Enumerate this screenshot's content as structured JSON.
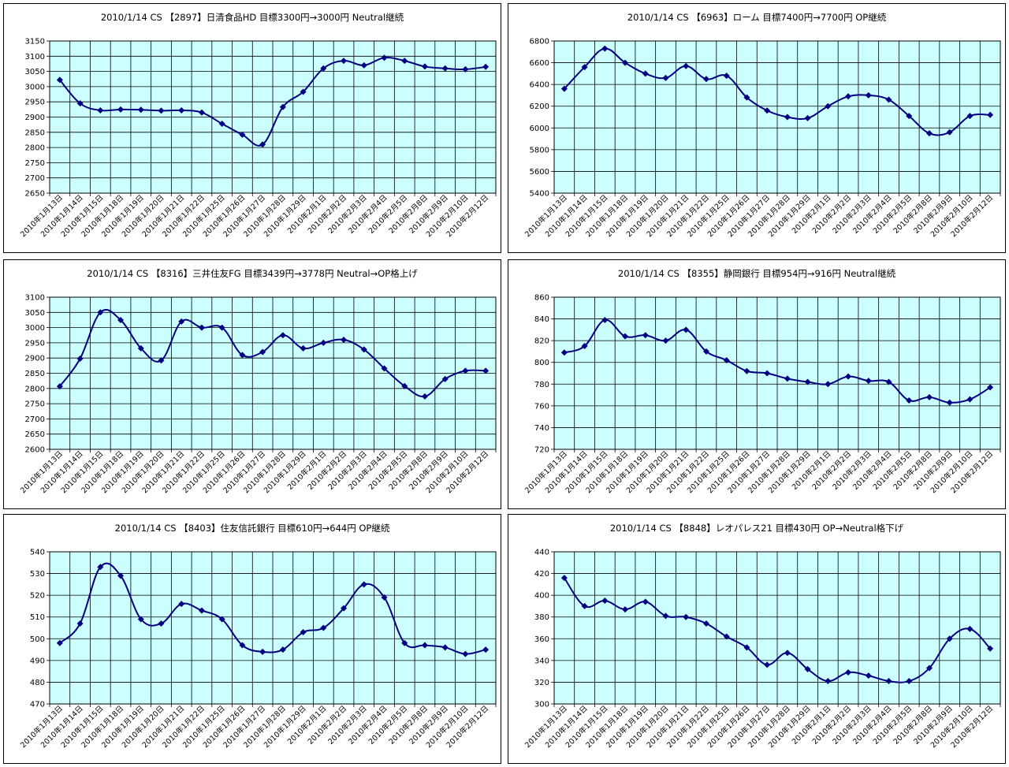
{
  "colors": {
    "plot_bg": "#ccffff",
    "grid": "#000000",
    "line": "#000080",
    "marker": "#000080"
  },
  "chart_data": [
    {
      "type": "line",
      "title": "2010/1/14 CS 【2897】日清食品HD 目標3300円→3000円 Neutral継続",
      "categories": [
        "2010年1月13日",
        "2010年1月14日",
        "2010年1月15日",
        "2010年1月18日",
        "2010年1月19日",
        "2010年1月20日",
        "2010年1月21日",
        "2010年1月22日",
        "2010年1月25日",
        "2010年1月26日",
        "2010年1月27日",
        "2010年1月28日",
        "2010年1月29日",
        "2010年2月1日",
        "2010年2月2日",
        "2010年2月3日",
        "2010年2月4日",
        "2010年2月5日",
        "2010年2月8日",
        "2010年2月9日",
        "2010年2月10日",
        "2010年2月12日"
      ],
      "yticks": [
        "2650",
        "2700",
        "2750",
        "2800",
        "2850",
        "2900",
        "2950",
        "3000",
        "3050",
        "3100",
        "3150"
      ],
      "ylim": [
        2650,
        3150
      ],
      "values": [
        3022,
        2945,
        2922,
        2925,
        2924,
        2921,
        2922,
        2915,
        2878,
        2842,
        2810,
        2933,
        2983,
        3060,
        3085,
        3070,
        3095,
        3085,
        3066,
        3060,
        3057,
        3065
      ]
    },
    {
      "type": "line",
      "title": "2010/1/14 CS 【6963】ローム 目標7400円→7700円 OP継続",
      "categories": [
        "2010年1月13日",
        "2010年1月14日",
        "2010年1月15日",
        "2010年1月18日",
        "2010年1月19日",
        "2010年1月20日",
        "2010年1月21日",
        "2010年1月22日",
        "2010年1月25日",
        "2010年1月26日",
        "2010年1月27日",
        "2010年1月28日",
        "2010年1月29日",
        "2010年2月1日",
        "2010年2月2日",
        "2010年2月3日",
        "2010年2月4日",
        "2010年2月5日",
        "2010年2月8日",
        "2010年2月9日",
        "2010年2月10日",
        "2010年2月12日"
      ],
      "yticks": [
        "5400",
        "5600",
        "5800",
        "6000",
        "6200",
        "6400",
        "6600",
        "6800"
      ],
      "ylim": [
        5400,
        6800
      ],
      "values": [
        6360,
        6560,
        6730,
        6600,
        6500,
        6460,
        6570,
        6450,
        6480,
        6280,
        6160,
        6100,
        6090,
        6200,
        6290,
        6300,
        6260,
        6110,
        5950,
        5960,
        6110,
        6120
      ]
    },
    {
      "type": "line",
      "title": "2010/1/14 CS 【8316】三井住友FG 目標3439円→3778円 Neutral→OP格上げ",
      "categories": [
        "2010年1月13日",
        "2010年1月14日",
        "2010年1月15日",
        "2010年1月18日",
        "2010年1月19日",
        "2010年1月20日",
        "2010年1月21日",
        "2010年1月22日",
        "2010年1月25日",
        "2010年1月26日",
        "2010年1月27日",
        "2010年1月28日",
        "2010年1月29日",
        "2010年2月1日",
        "2010年2月2日",
        "2010年2月3日",
        "2010年2月4日",
        "2010年2月5日",
        "2010年2月8日",
        "2010年2月9日",
        "2010年2月10日",
        "2010年2月12日"
      ],
      "yticks": [
        "2600",
        "2650",
        "2700",
        "2750",
        "2800",
        "2850",
        "2900",
        "2950",
        "3000",
        "3050",
        "3100"
      ],
      "ylim": [
        2600,
        3100
      ],
      "values": [
        2807,
        2898,
        3050,
        3025,
        2932,
        2892,
        3020,
        3000,
        3000,
        2910,
        2920,
        2975,
        2932,
        2950,
        2960,
        2928,
        2866,
        2808,
        2774,
        2831,
        2858,
        2858
      ]
    },
    {
      "type": "line",
      "title": "2010/1/14 CS 【8355】静岡銀行 目標954円→916円 Neutral継続",
      "categories": [
        "2010年1月13日",
        "2010年1月14日",
        "2010年1月15日",
        "2010年1月18日",
        "2010年1月19日",
        "2010年1月20日",
        "2010年1月21日",
        "2010年1月22日",
        "2010年1月25日",
        "2010年1月26日",
        "2010年1月27日",
        "2010年1月28日",
        "2010年1月29日",
        "2010年2月1日",
        "2010年2月2日",
        "2010年2月3日",
        "2010年2月4日",
        "2010年2月5日",
        "2010年2月8日",
        "2010年2月9日",
        "2010年2月10日",
        "2010年2月12日"
      ],
      "yticks": [
        "720",
        "740",
        "760",
        "780",
        "800",
        "820",
        "840",
        "860"
      ],
      "ylim": [
        720,
        860
      ],
      "values": [
        809,
        815,
        839,
        824,
        825,
        820,
        830,
        810,
        802,
        792,
        790,
        785,
        782,
        780,
        787,
        783,
        782,
        765,
        768,
        763,
        766,
        777
      ]
    },
    {
      "type": "line",
      "title": "2010/1/14 CS 【8403】住友信託銀行 目標610円→644円 OP継続",
      "categories": [
        "2010年1月13日",
        "2010年1月14日",
        "2010年1月15日",
        "2010年1月18日",
        "2010年1月19日",
        "2010年1月20日",
        "2010年1月21日",
        "2010年1月22日",
        "2010年1月25日",
        "2010年1月26日",
        "2010年1月27日",
        "2010年1月28日",
        "2010年1月29日",
        "2010年2月1日",
        "2010年2月2日",
        "2010年2月3日",
        "2010年2月4日",
        "2010年2月5日",
        "2010年2月8日",
        "2010年2月9日",
        "2010年2月10日",
        "2010年2月12日"
      ],
      "yticks": [
        "470",
        "480",
        "490",
        "500",
        "510",
        "520",
        "530",
        "540"
      ],
      "ylim": [
        470,
        540
      ],
      "values": [
        498,
        507,
        533,
        529,
        509,
        507,
        516,
        513,
        509,
        497,
        494,
        495,
        503,
        505,
        514,
        525,
        519,
        498,
        497,
        496,
        493,
        495
      ]
    },
    {
      "type": "line",
      "title": "2010/1/14 CS 【8848】レオパレス21 目標430円 OP→Neutral格下げ",
      "categories": [
        "2010年1月13日",
        "2010年1月14日",
        "2010年1月15日",
        "2010年1月18日",
        "2010年1月19日",
        "2010年1月20日",
        "2010年1月21日",
        "2010年1月22日",
        "2010年1月25日",
        "2010年1月26日",
        "2010年1月27日",
        "2010年1月28日",
        "2010年1月29日",
        "2010年2月1日",
        "2010年2月2日",
        "2010年2月3日",
        "2010年2月4日",
        "2010年2月5日",
        "2010年2月8日",
        "2010年2月9日",
        "2010年2月10日",
        "2010年2月12日"
      ],
      "yticks": [
        "300",
        "320",
        "340",
        "360",
        "380",
        "400",
        "420",
        "440"
      ],
      "ylim": [
        300,
        440
      ],
      "values": [
        416,
        390,
        395,
        387,
        394,
        381,
        380,
        374,
        362,
        352,
        336,
        347,
        332,
        321,
        329,
        326,
        321,
        321,
        333,
        360,
        369,
        351
      ]
    }
  ]
}
